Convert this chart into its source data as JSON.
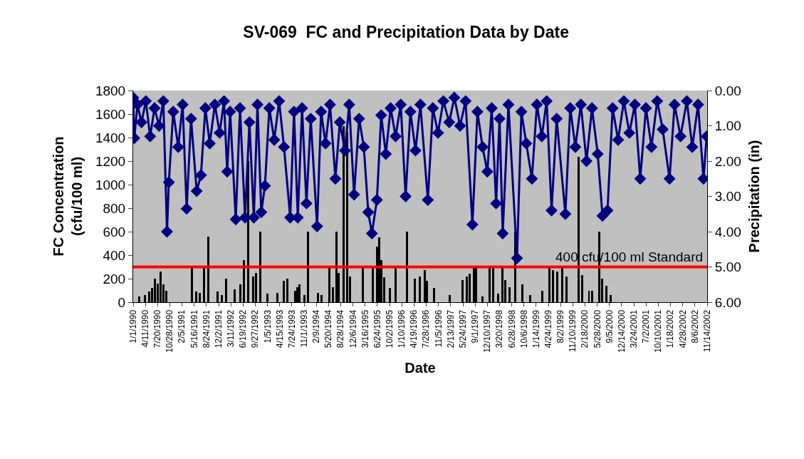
{
  "chart_data": {
    "type": "bar",
    "title": "SV-069  FC and Precipitation Data by Date",
    "xlabel": "Date",
    "ylabel": "FC Concentration (cfu/100 ml)",
    "y2label": "Precipitation (in)",
    "xlim": [
      "1990-01-01",
      "2002-11-14"
    ],
    "xticks": [
      {
        "value": "1990-01-01",
        "label": "1/1/1990"
      },
      {
        "value": "1990-04-11",
        "label": "4/11/1990"
      },
      {
        "value": "1990-07-20",
        "label": "7/20/1990"
      },
      {
        "value": "1990-10-28",
        "label": "10/28/1990"
      },
      {
        "value": "1991-02-05",
        "label": "2/5/1991"
      },
      {
        "value": "1991-05-16",
        "label": "5/16/1991"
      },
      {
        "value": "1991-08-24",
        "label": "8/24/1991"
      },
      {
        "value": "1991-12-02",
        "label": "12/2/1991"
      },
      {
        "value": "1992-03-11",
        "label": "3/11/1992"
      },
      {
        "value": "1992-06-19",
        "label": "6/19/1992"
      },
      {
        "value": "1992-09-27",
        "label": "9/27/1992"
      },
      {
        "value": "1993-01-05",
        "label": "1/5/1993"
      },
      {
        "value": "1993-04-15",
        "label": "4/15/1993"
      },
      {
        "value": "1993-07-24",
        "label": "7/24/1993"
      },
      {
        "value": "1993-11-01",
        "label": "11/1/1993"
      },
      {
        "value": "1994-02-09",
        "label": "2/9/1994"
      },
      {
        "value": "1994-05-20",
        "label": "5/20/1994"
      },
      {
        "value": "1994-08-28",
        "label": "8/28/1994"
      },
      {
        "value": "1994-12-06",
        "label": "12/6/1994"
      },
      {
        "value": "1995-03-16",
        "label": "3/16/1995"
      },
      {
        "value": "1995-06-24",
        "label": "6/24/1995"
      },
      {
        "value": "1995-10-02",
        "label": "10/2/1995"
      },
      {
        "value": "1996-01-10",
        "label": "1/10/1996"
      },
      {
        "value": "1996-04-19",
        "label": "4/19/1996"
      },
      {
        "value": "1996-07-28",
        "label": "7/28/1996"
      },
      {
        "value": "1996-11-05",
        "label": "11/5/1996"
      },
      {
        "value": "1997-02-13",
        "label": "2/13/1997"
      },
      {
        "value": "1997-05-24",
        "label": "5/24/1997"
      },
      {
        "value": "1997-09-01",
        "label": "9/1/1997"
      },
      {
        "value": "1997-12-10",
        "label": "12/10/1997"
      },
      {
        "value": "1998-03-20",
        "label": "3/20/1998"
      },
      {
        "value": "1998-06-28",
        "label": "6/28/1998"
      },
      {
        "value": "1998-10-06",
        "label": "10/6/1998"
      },
      {
        "value": "1999-01-14",
        "label": "1/14/1999"
      },
      {
        "value": "1999-04-24",
        "label": "4/24/1999"
      },
      {
        "value": "1999-08-02",
        "label": "8/2/1999"
      },
      {
        "value": "1999-11-10",
        "label": "11/10/1999"
      },
      {
        "value": "2000-02-18",
        "label": "2/18/2000"
      },
      {
        "value": "2000-05-28",
        "label": "5/28/2000"
      },
      {
        "value": "2000-09-05",
        "label": "9/5/2000"
      },
      {
        "value": "2000-12-14",
        "label": "12/14/2000"
      },
      {
        "value": "2001-03-24",
        "label": "3/24/2001"
      },
      {
        "value": "2001-07-02",
        "label": "7/2/2001"
      },
      {
        "value": "2001-10-10",
        "label": "10/10/2001"
      },
      {
        "value": "2002-01-18",
        "label": "1/18/2002"
      },
      {
        "value": "2002-04-28",
        "label": "4/28/2002"
      },
      {
        "value": "2002-08-06",
        "label": "8/6/2002"
      },
      {
        "value": "2002-11-14",
        "label": "11/14/2002"
      }
    ],
    "ylim": [
      0,
      1800
    ],
    "yticks": [
      0,
      200,
      400,
      600,
      800,
      1000,
      1200,
      1400,
      1600,
      1800
    ],
    "y2lim": [
      6,
      0
    ],
    "y2ticks": [
      {
        "value": 0,
        "label": "0.00"
      },
      {
        "value": 1,
        "label": "1.00"
      },
      {
        "value": 2,
        "label": "2.00"
      },
      {
        "value": 3,
        "label": "3.00"
      },
      {
        "value": 4,
        "label": "4.00"
      },
      {
        "value": 5,
        "label": "5.00"
      },
      {
        "value": 6,
        "label": "6.00"
      }
    ],
    "grid": false,
    "ref_lines": [
      {
        "axis": "y2",
        "value": 5,
        "label": "400 cfu/100 ml Standard",
        "color": "#ff0000"
      }
    ],
    "series": [
      {
        "color": "#000000",
        "x": [
          "1990-02-22",
          "1990-04-08",
          "1990-05-12",
          "1990-06-05",
          "1990-06-28",
          "1990-07-21",
          "1990-08-14",
          "1990-09-07",
          "1990-10-01",
          "1991-04-27",
          "1991-06-01",
          "1991-07-01",
          "1991-08-05",
          "1991-09-09",
          "1991-11-24",
          "1991-12-27",
          "1992-02-03",
          "1992-04-12",
          "1992-05-27",
          "1992-06-27",
          "1992-08-01",
          "1992-09-12",
          "1992-10-03",
          "1992-11-09",
          "1993-01-06",
          "1993-03-27",
          "1993-05-18",
          "1993-06-18",
          "1993-08-21",
          "1993-09-06",
          "1993-09-24",
          "1993-11-01",
          "1993-12-03",
          "1994-02-24",
          "1994-03-21",
          "1994-05-27",
          "1994-06-24",
          "1994-07-24",
          "1994-08-09",
          "1994-09-21",
          "1994-10-18",
          "1994-11-12",
          "1995-02-24",
          "1995-05-15",
          "1995-06-21",
          "1995-07-09",
          "1995-07-24",
          "1995-08-18",
          "1995-10-03",
          "1995-11-21",
          "1996-02-21",
          "1996-04-24",
          "1996-06-06",
          "1996-07-15",
          "1996-08-03",
          "1996-10-01",
          "1997-02-06",
          "1997-05-21",
          "1997-06-24",
          "1997-07-18",
          "1997-08-21",
          "1997-09-09",
          "1997-11-01",
          "1997-12-27",
          "1998-01-27",
          "1998-03-06",
          "1998-04-12",
          "1998-05-06",
          "1998-06-09",
          "1998-07-24",
          "1998-09-24",
          "1998-11-27",
          "1999-03-03",
          "1999-05-01",
          "1999-06-01",
          "1999-07-03",
          "1999-08-15",
          "1999-09-18",
          "1999-12-27",
          "2000-01-24",
          "2000-02-24",
          "2000-03-21",
          "2000-04-15",
          "2000-06-12",
          "2000-07-06",
          "2000-08-09",
          "2000-09-15"
        ],
        "values": [
          50,
          60,
          90,
          120,
          200,
          160,
          260,
          150,
          100,
          300,
          90,
          80,
          300,
          560,
          90,
          60,
          200,
          110,
          150,
          360,
          1200,
          220,
          250,
          600,
          70,
          80,
          180,
          200,
          100,
          130,
          150,
          60,
          600,
          80,
          60,
          300,
          130,
          600,
          250,
          1500,
          1450,
          220,
          300,
          300,
          470,
          550,
          360,
          210,
          120,
          300,
          600,
          200,
          220,
          270,
          180,
          120,
          60,
          190,
          220,
          240,
          300,
          290,
          50,
          300,
          300,
          70,
          300,
          190,
          130,
          600,
          150,
          60,
          100,
          300,
          270,
          260,
          300,
          220,
          1235,
          230,
          null,
          100,
          100,
          600,
          200,
          140,
          60
        ]
      },
      {
        "type": "line",
        "axis": "y2",
        "color": "#000080",
        "marker": "diamond",
        "line_style": "solid",
        "x": [
          "1990-01-01",
          "1990-01-10",
          "1990-02-05",
          "1990-03-10",
          "1990-04-15",
          "1990-05-20",
          "1990-06-25",
          "1990-08-01",
          "1990-09-05",
          "1990-10-05",
          "1990-10-20",
          "1990-11-25",
          "1991-01-05",
          "1991-02-10",
          "1991-03-15",
          "1991-04-20",
          "1991-06-05",
          "1991-07-10",
          "1991-08-15",
          "1991-09-20",
          "1991-11-01",
          "1991-12-10",
          "1992-01-15",
          "1992-02-10",
          "1992-03-05",
          "1992-04-20",
          "1992-05-25",
          "1992-07-05",
          "1992-08-10",
          "1992-09-15",
          "1992-10-15",
          "1992-11-15",
          "1992-12-15",
          "1993-01-20",
          "1993-03-01",
          "1993-04-10",
          "1993-05-20",
          "1993-07-10",
          "1993-08-10",
          "1993-09-10",
          "1993-10-15",
          "1993-11-20",
          "1993-12-25",
          "1994-02-15",
          "1994-03-20",
          "1994-04-25",
          "1994-06-01",
          "1994-07-15",
          "1994-08-20",
          "1994-10-01",
          "1994-11-05",
          "1994-12-15",
          "1995-01-25",
          "1995-03-05",
          "1995-04-10",
          "1995-05-10",
          "1995-06-20",
          "1995-07-25",
          "1995-09-01",
          "1995-10-10",
          "1995-11-20",
          "1996-01-01",
          "1996-02-10",
          "1996-03-20",
          "1996-05-01",
          "1996-06-10",
          "1996-08-10",
          "1996-09-20",
          "1996-11-01",
          "1996-12-15",
          "1997-02-01",
          "1997-03-15",
          "1997-05-01",
          "1997-06-15",
          "1997-08-10",
          "1997-09-20",
          "1997-11-01",
          "1997-12-10",
          "1998-01-15",
          "1998-02-20",
          "1998-03-20",
          "1998-04-15",
          "1998-06-01",
          "1998-08-10",
          "1998-09-15",
          "1998-10-25",
          "1998-12-10",
          "1999-01-20",
          "1999-03-01",
          "1999-04-10",
          "1999-05-20",
          "1999-07-01",
          "1999-09-10",
          "1999-10-20",
          "1999-12-01",
          "2000-01-15",
          "2000-03-01",
          "2000-04-15",
          "2000-06-01",
          "2000-07-10",
          "2000-08-20",
          "2000-10-01",
          "2000-11-15",
          "2001-01-01",
          "2001-02-15",
          "2001-04-01",
          "2001-05-15",
          "2001-07-01",
          "2001-08-15",
          "2001-10-01",
          "2001-11-15",
          "2002-01-10",
          "2002-02-20",
          "2002-04-10",
          "2002-06-01",
          "2002-07-15",
          "2002-09-01",
          "2002-10-15",
          "2002-11-10"
        ],
        "values": [
          0.2,
          1.35,
          0.4,
          0.9,
          0.3,
          1.3,
          0.5,
          1.0,
          0.3,
          4.0,
          2.6,
          0.6,
          1.6,
          0.4,
          3.35,
          0.8,
          2.85,
          2.4,
          0.5,
          1.5,
          0.4,
          1.2,
          0.3,
          2.3,
          0.6,
          3.65,
          0.5,
          3.6,
          0.9,
          3.6,
          0.4,
          3.45,
          2.7,
          0.5,
          1.4,
          0.3,
          1.6,
          3.6,
          0.6,
          3.6,
          0.5,
          3.2,
          0.8,
          3.85,
          0.6,
          1.5,
          0.4,
          2.5,
          0.9,
          1.7,
          0.4,
          2.95,
          0.8,
          1.6,
          3.45,
          4.05,
          3.1,
          0.7,
          1.8,
          0.5,
          1.3,
          0.4,
          3.0,
          0.6,
          1.7,
          0.4,
          3.1,
          0.5,
          1.2,
          0.3,
          0.9,
          0.2,
          1.0,
          0.3,
          3.8,
          0.6,
          1.6,
          2.3,
          0.5,
          3.2,
          0.8,
          4.05,
          0.4,
          4.75,
          0.6,
          1.5,
          2.5,
          0.4,
          1.3,
          0.3,
          3.4,
          0.8,
          3.5,
          0.5,
          1.6,
          0.4,
          2.0,
          0.5,
          1.8,
          3.55,
          3.4,
          0.5,
          1.4,
          0.3,
          1.2,
          0.4,
          2.5,
          0.5,
          1.6,
          0.3,
          1.1,
          2.5,
          0.4,
          1.3,
          0.3,
          1.6,
          0.4,
          2.5,
          1.3
        ]
      }
    ]
  }
}
